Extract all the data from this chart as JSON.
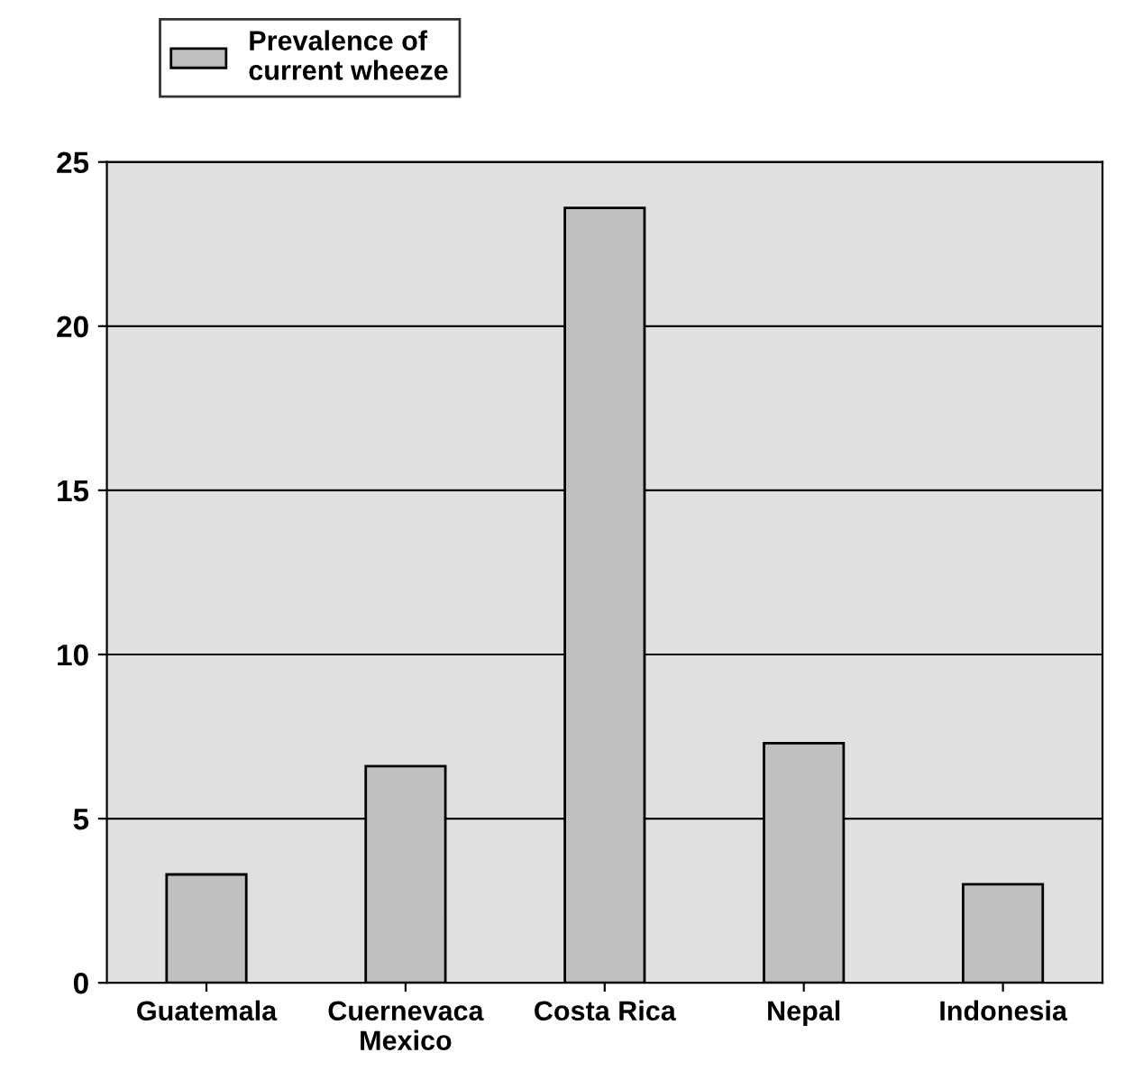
{
  "chart_data": {
    "type": "bar",
    "categories": [
      "Guatemala",
      "Cuernevaca\nMexico",
      "Costa Rica",
      "Nepal",
      "Indonesia"
    ],
    "series": [
      {
        "name": "Prevalence of current wheeze",
        "color": "#c0c0c0",
        "values": [
          3.3,
          6.6,
          23.6,
          7.3,
          3.0
        ]
      }
    ],
    "ylim": [
      0,
      25
    ],
    "yticks": [
      0,
      5,
      10,
      15,
      20,
      25
    ],
    "grid": "y",
    "legend": "top left"
  }
}
